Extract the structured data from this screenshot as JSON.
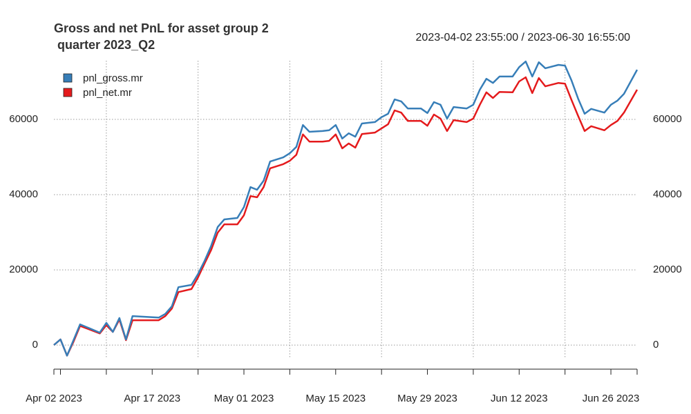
{
  "chart_data": {
    "type": "line",
    "title": [
      "Gross and net PnL for asset group 2",
      " quarter 2023_Q2"
    ],
    "subtitle": "2023-04-02 23:55:00 / 2023-06-30 16:55:00",
    "x": [
      "2023-04-02",
      "2023-04-03",
      "2023-04-04",
      "2023-04-05",
      "2023-04-06",
      "2023-04-09",
      "2023-04-10",
      "2023-04-11",
      "2023-04-12",
      "2023-04-13",
      "2023-04-14",
      "2023-04-18",
      "2023-04-19",
      "2023-04-20",
      "2023-04-21",
      "2023-04-23",
      "2023-04-24",
      "2023-04-25",
      "2023-04-26",
      "2023-04-27",
      "2023-04-28",
      "2023-04-30",
      "2023-05-01",
      "2023-05-02",
      "2023-05-03",
      "2023-05-04",
      "2023-05-05",
      "2023-05-07",
      "2023-05-08",
      "2023-05-09",
      "2023-05-10",
      "2023-05-11",
      "2023-05-13",
      "2023-05-14",
      "2023-05-15",
      "2023-05-16",
      "2023-05-17",
      "2023-05-18",
      "2023-05-19",
      "2023-05-21",
      "2023-05-22",
      "2023-05-23",
      "2023-05-24",
      "2023-05-25",
      "2023-05-26",
      "2023-05-28",
      "2023-05-29",
      "2023-05-30",
      "2023-05-31",
      "2023-06-01",
      "2023-06-02",
      "2023-06-04",
      "2023-06-05",
      "2023-06-06",
      "2023-06-07",
      "2023-06-08",
      "2023-06-09",
      "2023-06-11",
      "2023-06-12",
      "2023-06-13",
      "2023-06-14",
      "2023-06-15",
      "2023-06-16",
      "2023-06-18",
      "2023-06-19",
      "2023-06-20",
      "2023-06-21",
      "2023-06-22",
      "2023-06-23",
      "2023-06-25",
      "2023-06-26",
      "2023-06-27",
      "2023-06-28",
      "2023-06-30"
    ],
    "series": [
      {
        "name": "pnl_gross.mr",
        "color": "#377eb8",
        "values": [
          0,
          1500,
          -2800,
          1300,
          5500,
          3300,
          5900,
          3500,
          7200,
          1500,
          7700,
          7300,
          8300,
          10300,
          15400,
          16000,
          18900,
          22400,
          26400,
          31400,
          33400,
          33800,
          36700,
          42000,
          41300,
          43700,
          48800,
          49900,
          51000,
          52700,
          58500,
          56700,
          56900,
          57100,
          58500,
          54900,
          56300,
          55400,
          58900,
          59300,
          60600,
          61500,
          65300,
          64800,
          62900,
          62900,
          61700,
          64600,
          63900,
          60200,
          63300,
          62900,
          63900,
          67900,
          70800,
          69700,
          71400,
          71400,
          73900,
          75400,
          71400,
          75200,
          73600,
          74500,
          74300,
          70300,
          65500,
          61500,
          62800,
          61800,
          63900,
          65000,
          66800,
          73200
        ]
      },
      {
        "name": "pnl_net.mr",
        "color": "#e41a1c",
        "values": [
          0,
          1500,
          -2800,
          900,
          5100,
          3100,
          5300,
          3500,
          6800,
          1300,
          6600,
          6600,
          7700,
          9700,
          14100,
          14900,
          18000,
          21700,
          25300,
          29900,
          32100,
          32100,
          34500,
          39600,
          39300,
          42000,
          47000,
          48100,
          49000,
          50600,
          56000,
          54100,
          54100,
          54300,
          56000,
          52300,
          53600,
          52500,
          56100,
          56500,
          57600,
          58700,
          62400,
          61800,
          59600,
          59600,
          58300,
          61300,
          60200,
          56900,
          59800,
          59300,
          60200,
          63900,
          67200,
          65700,
          67300,
          67200,
          70100,
          71200,
          67000,
          71000,
          68800,
          69700,
          69500,
          65100,
          60900,
          56900,
          58200,
          57100,
          58500,
          59600,
          61800,
          67900
        ]
      }
    ],
    "xlim": [
      "2023-04-02",
      "2023-06-30"
    ],
    "xticks": [
      {
        "value": "2023-04-02",
        "label": "Apr 02 2023"
      },
      {
        "value": "2023-04-17",
        "label": "Apr 17 2023"
      },
      {
        "value": "2023-05-01",
        "label": "May 01 2023"
      },
      {
        "value": "2023-05-15",
        "label": "May 15 2023"
      },
      {
        "value": "2023-05-29",
        "label": "May 29 2023"
      },
      {
        "value": "2023-06-12",
        "label": "Jun 12 2023"
      },
      {
        "value": "2023-06-26",
        "label": "Jun 26 2023"
      }
    ],
    "xminorticks": [
      "2023-04-03",
      "2023-04-10",
      "2023-04-24",
      "2023-05-08",
      "2023-05-22",
      "2023-06-05",
      "2023-06-19",
      "2023-06-30"
    ],
    "xgrid": [
      "2023-04-10",
      "2023-04-24",
      "2023-05-08",
      "2023-05-22",
      "2023-06-05",
      "2023-06-19"
    ],
    "ylim": [
      -6400,
      75600
    ],
    "yticks": [
      0,
      20000,
      40000,
      60000
    ],
    "grid": true,
    "legend": "top-left"
  }
}
